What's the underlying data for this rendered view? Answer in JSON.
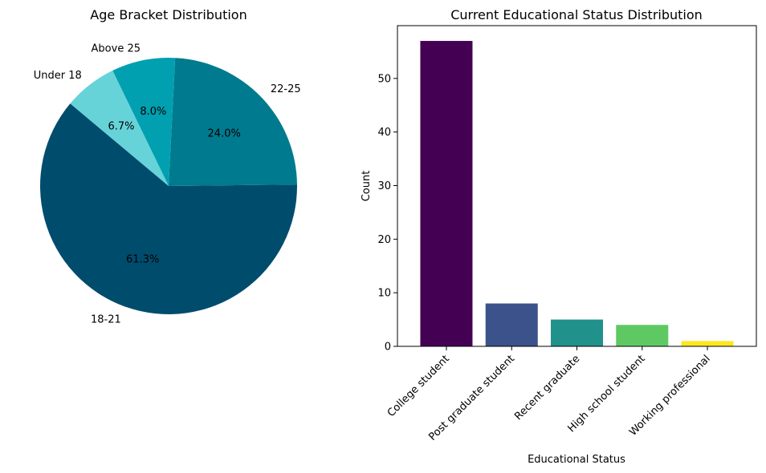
{
  "chart_data": [
    {
      "type": "pie",
      "title": "Age Bracket Distribution",
      "labels": [
        "18-21",
        "22-25",
        "Above 25",
        "Under 18"
      ],
      "values": [
        61.3,
        24.0,
        8.0,
        6.7
      ],
      "percent_labels": [
        "61.3%",
        "24.0%",
        "8.0%",
        "6.7%"
      ],
      "colors": [
        "#004c6d",
        "#007a8e",
        "#00a0b0",
        "#66d3d9"
      ]
    },
    {
      "type": "bar",
      "title": "Current Educational Status Distribution",
      "xlabel": "Educational Status",
      "ylabel": "Count",
      "categories": [
        "College student",
        "Post graduate student",
        "Recent graduate",
        "High school student",
        "Working professional"
      ],
      "values": [
        57,
        8,
        5,
        4,
        1
      ],
      "colors": [
        "#440154",
        "#3b528b",
        "#21918c",
        "#5ec962",
        "#fde725"
      ],
      "ylim": [
        0,
        60
      ],
      "yticks": [
        0,
        10,
        20,
        30,
        40,
        50
      ],
      "grid": false
    }
  ]
}
